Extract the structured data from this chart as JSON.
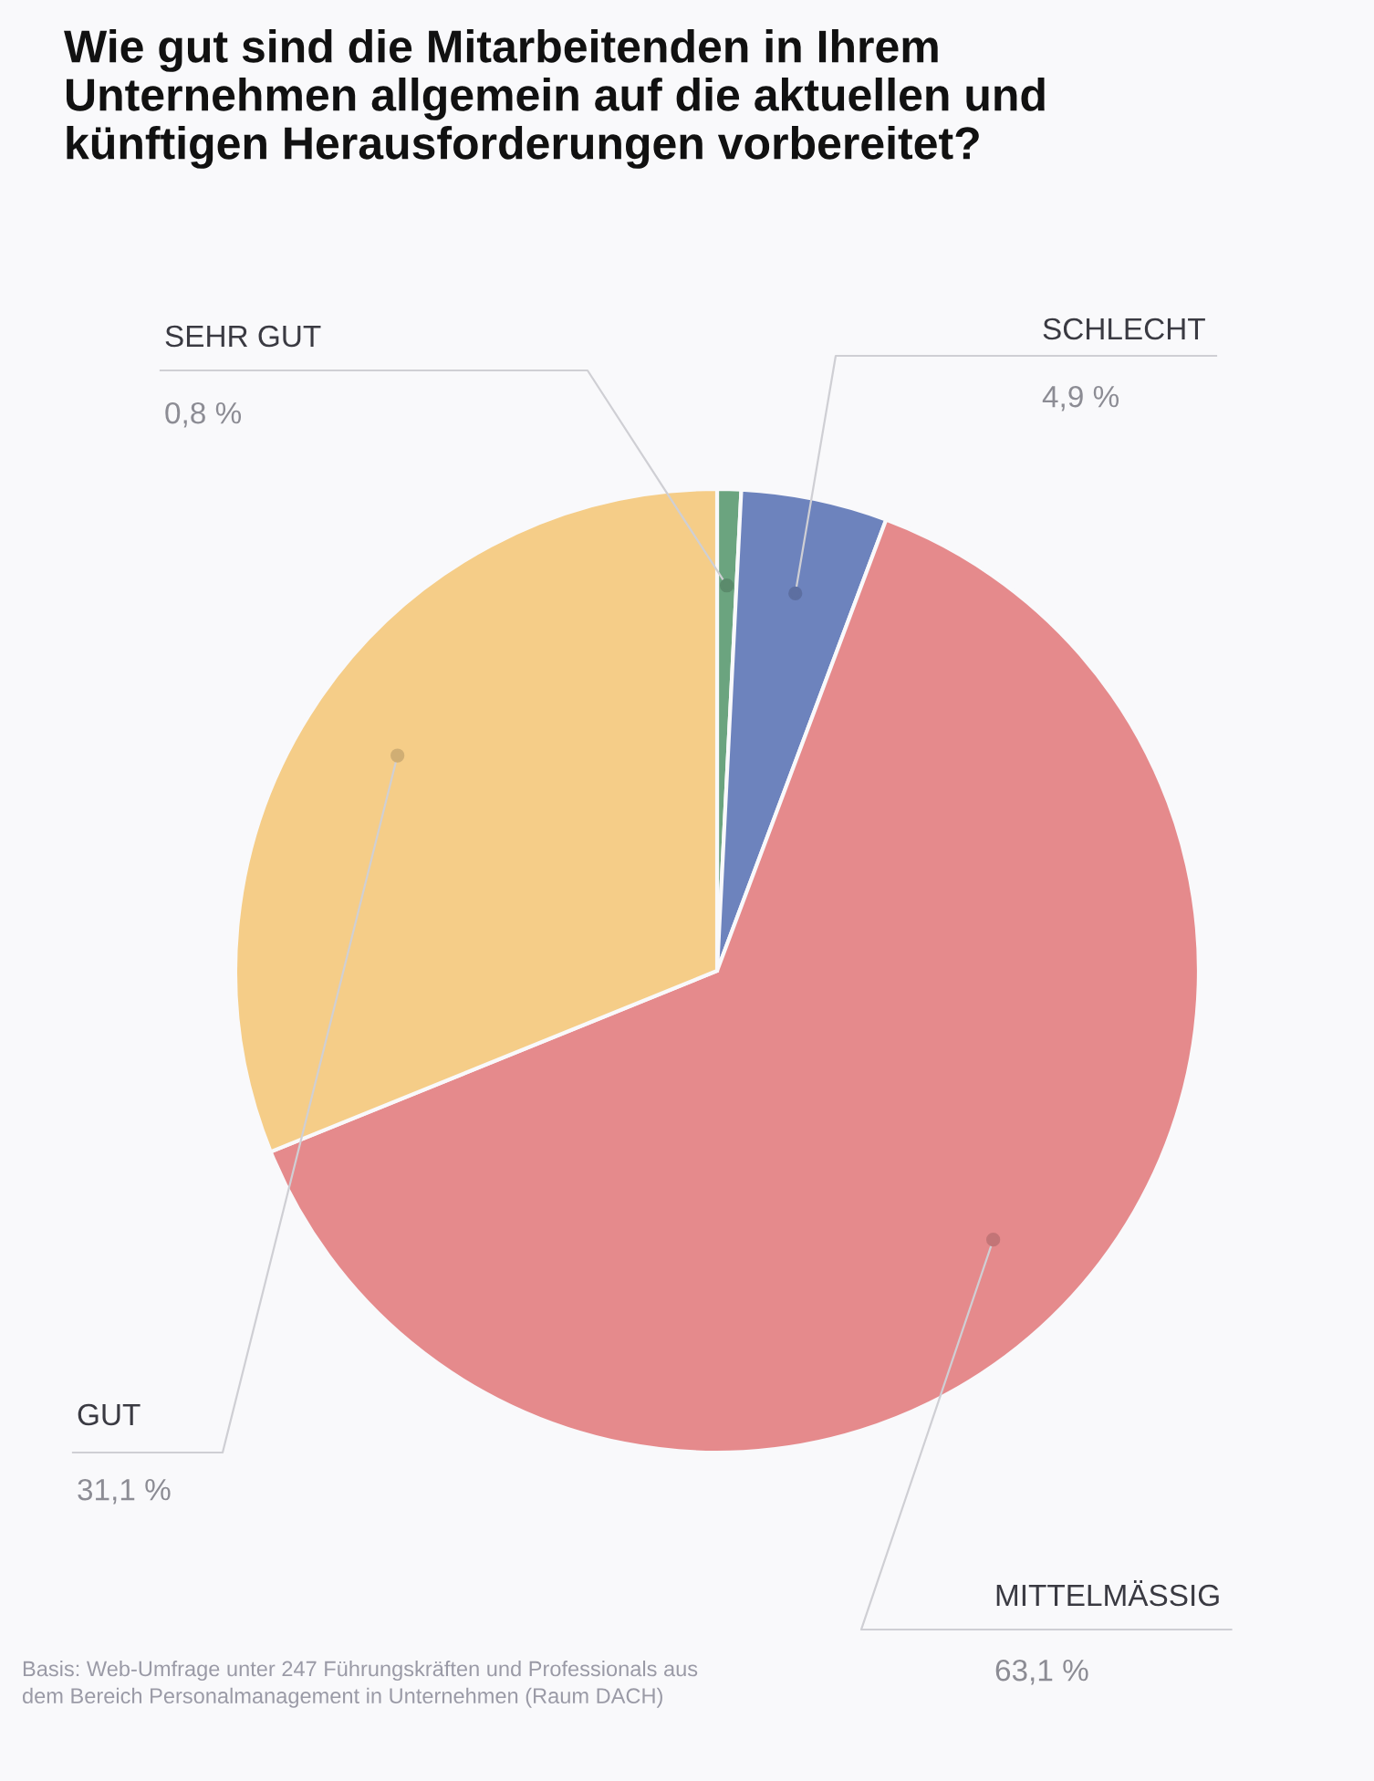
{
  "chart_data": {
    "type": "pie",
    "title": "Wie gut sind die Mitarbeitenden in Ihrem Unternehmen allgemein auf die aktuellen und künftigen Herausforderungen vorbereitet?",
    "categories": [
      "SEHR GUT",
      "SCHLECHT",
      "MITTELMÄSSIG",
      "GUT"
    ],
    "values": [
      0.8,
      4.9,
      63.1,
      31.1
    ],
    "value_labels": [
      "0,8 %",
      "4,9 %",
      "63,1 %",
      "31,1 %"
    ],
    "colors": [
      "#6ba47f",
      "#6d83bd",
      "#e58a8c",
      "#f5cd88"
    ],
    "annotations": [
      "Basis: Web-Umfrage unter 247 Führungskräften und Professionals aus dem Bereich Personalmanagement in Unternehmen (Raum DACH)"
    ]
  }
}
